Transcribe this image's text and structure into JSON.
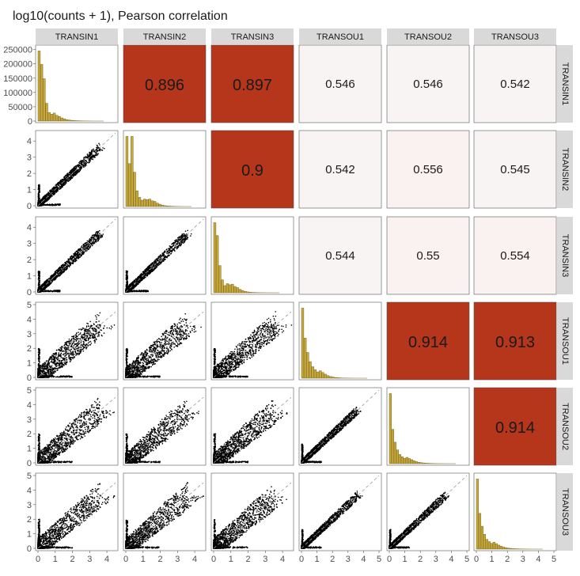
{
  "title": "log10(counts + 1), Pearson correlation",
  "colors": {
    "high_corr": "#b5361a",
    "low_corr": "#f8f4f4",
    "low_corr_alt": "#faf1f1",
    "histogram_fill": "#c8a838",
    "histogram_stroke": "#7a6a2a",
    "strip": "#d9d9d9",
    "points": "#000000",
    "diagonal": "#9a9a9a"
  },
  "chart_data": {
    "type": "scatter-matrix",
    "samples": [
      "TRANSIN1",
      "TRANSIN2",
      "TRANSIN3",
      "TRANSOU1",
      "TRANSOU2",
      "TRANSOU3"
    ],
    "column_strips": [
      "TRANSIN1",
      "TRANSIN2",
      "TRANSIN3",
      "TRANSOU1",
      "TRANSOU2",
      "TRANSOU3"
    ],
    "row_strips": [
      "TRANSIN1",
      "TRANSIN2",
      "TRANSIN3",
      "TRANSOU1",
      "TRANSOU2",
      "TRANSOU3"
    ],
    "correlations": [
      {
        "row": 0,
        "col": 1,
        "label": "0.896",
        "value": 0.896
      },
      {
        "row": 0,
        "col": 2,
        "label": "0.897",
        "value": 0.897
      },
      {
        "row": 0,
        "col": 3,
        "label": "0.546",
        "value": 0.546
      },
      {
        "row": 0,
        "col": 4,
        "label": "0.546",
        "value": 0.546
      },
      {
        "row": 0,
        "col": 5,
        "label": "0.542",
        "value": 0.542
      },
      {
        "row": 1,
        "col": 2,
        "label": "0.9",
        "value": 0.9
      },
      {
        "row": 1,
        "col": 3,
        "label": "0.542",
        "value": 0.542
      },
      {
        "row": 1,
        "col": 4,
        "label": "0.556",
        "value": 0.556
      },
      {
        "row": 1,
        "col": 5,
        "label": "0.545",
        "value": 0.545
      },
      {
        "row": 2,
        "col": 3,
        "label": "0.544",
        "value": 0.544
      },
      {
        "row": 2,
        "col": 4,
        "label": "0.55",
        "value": 0.55
      },
      {
        "row": 2,
        "col": 5,
        "label": "0.554",
        "value": 0.554
      },
      {
        "row": 3,
        "col": 4,
        "label": "0.914",
        "value": 0.914
      },
      {
        "row": 3,
        "col": 5,
        "label": "0.913",
        "value": 0.913
      },
      {
        "row": 4,
        "col": 5,
        "label": "0.914",
        "value": 0.914
      }
    ],
    "histogram_y_axis": {
      "ticks": [
        0,
        50000,
        100000,
        150000,
        200000,
        250000
      ],
      "labels": [
        "0",
        "50000",
        "100000",
        "150000",
        "200000",
        "250000"
      ],
      "ylim": [
        0,
        260000
      ]
    },
    "histograms": [
      {
        "sample": "TRANSIN1",
        "xlim": [
          0,
          4.6
        ],
        "bin_width": 0.15,
        "counts": [
          245000,
          198000,
          148000,
          62000,
          30000,
          24000,
          28000,
          20000,
          16000,
          11000,
          8000,
          5000,
          3500,
          2500,
          1500,
          1200,
          900,
          600,
          400,
          300,
          200,
          100,
          80,
          60,
          40,
          20
        ]
      },
      {
        "sample": "TRANSIN2",
        "xlim": [
          0,
          4.6
        ],
        "bin_width": 0.15,
        "counts": [
          245000,
          150000,
          245000,
          120000,
          55000,
          32000,
          22000,
          26000,
          24000,
          26000,
          20000,
          18000,
          12000,
          8000,
          5000,
          3000,
          2000,
          1400,
          900,
          600,
          400,
          200,
          120,
          60,
          30,
          20
        ]
      },
      {
        "sample": "TRANSIN3",
        "xlim": [
          0,
          4.6
        ],
        "bin_width": 0.15,
        "counts": [
          245000,
          200000,
          95000,
          45000,
          25000,
          32000,
          28000,
          30000,
          22000,
          18000,
          12000,
          8000,
          5000,
          3000,
          2000,
          1200,
          900,
          600,
          400,
          300,
          200,
          150,
          100,
          60,
          40,
          20
        ]
      },
      {
        "sample": "TRANSOU1",
        "xlim": [
          0,
          4.6
        ],
        "bin_width": 0.15,
        "counts": [
          245000,
          140000,
          90000,
          58000,
          40000,
          30000,
          22000,
          26000,
          20000,
          14000,
          9000,
          6000,
          4000,
          2500,
          1600,
          1000,
          700,
          500,
          350,
          250,
          180,
          120,
          80,
          50,
          30,
          20
        ]
      },
      {
        "sample": "TRANSOU2",
        "xlim": [
          0,
          4.9
        ],
        "bin_width": 0.15,
        "counts": [
          245000,
          120000,
          75000,
          48000,
          32000,
          24000,
          19000,
          22000,
          18000,
          14000,
          10000,
          7000,
          5000,
          3500,
          2500,
          1800,
          1300,
          900,
          650,
          450,
          320,
          220,
          160,
          110,
          80,
          50,
          30,
          20
        ]
      },
      {
        "sample": "TRANSOU3",
        "xlim": [
          0,
          4.9
        ],
        "bin_width": 0.15,
        "counts": [
          245000,
          125000,
          80000,
          52000,
          34000,
          26000,
          20000,
          24000,
          19000,
          14000,
          10000,
          7000,
          5000,
          3500,
          2500,
          1700,
          1200,
          900,
          650,
          450,
          320,
          220,
          160,
          110,
          80,
          50,
          30,
          20
        ]
      }
    ],
    "scatter_axis_ticks": {
      "ranges": {
        "TRANSIN1": [
          0,
          4.5
        ],
        "TRANSIN2": [
          0,
          4.5
        ],
        "TRANSIN3": [
          0,
          4.5
        ],
        "TRANSOU1": [
          0,
          5
        ],
        "TRANSOU2": [
          0,
          5
        ],
        "TRANSOU3": [
          0,
          5
        ]
      },
      "ticks": {
        "TRANSIN1": [
          "0",
          "1",
          "2",
          "3",
          "4"
        ],
        "TRANSIN2": [
          "0",
          "1",
          "2",
          "3",
          "4"
        ],
        "TRANSIN3": [
          "0",
          "1",
          "2",
          "3",
          "4"
        ],
        "TRANSOU1": [
          "0",
          "1",
          "2",
          "3",
          "4",
          "5"
        ],
        "TRANSOU2": [
          "0",
          "1",
          "2",
          "3",
          "4",
          "5"
        ],
        "TRANSOU3": [
          "0",
          "1",
          "2",
          "3",
          "4",
          "5"
        ]
      }
    },
    "grid": false,
    "legend": "none"
  }
}
